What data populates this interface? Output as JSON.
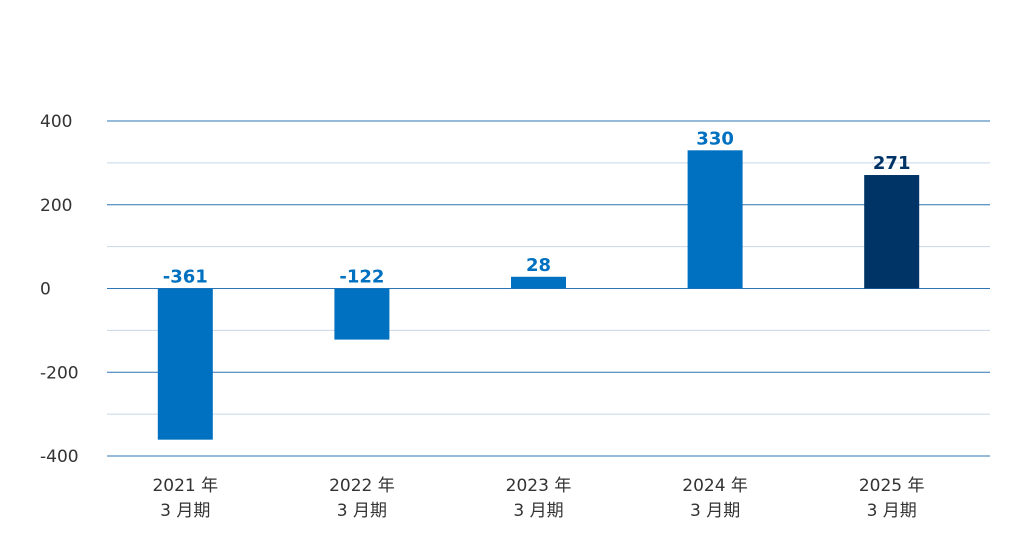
{
  "chart_data": {
    "type": "bar",
    "categories": [
      {
        "line1": "2021 年",
        "line2": "3 月期"
      },
      {
        "line1": "2022 年",
        "line2": "3 月期"
      },
      {
        "line1": "2023 年",
        "line2": "3 月期"
      },
      {
        "line1": "2024 年",
        "line2": "3 月期"
      },
      {
        "line1": "2025 年",
        "line2": "3 月期"
      }
    ],
    "values": [
      -361,
      -122,
      28,
      330,
      271
    ],
    "data_labels": [
      "-361",
      "-122",
      "28",
      "330",
      "271"
    ],
    "ylim": [
      -400,
      400
    ],
    "yticks": [
      "400",
      "200",
      "0",
      "-200",
      "-400"
    ],
    "ytick_values": [
      400,
      200,
      0,
      -200,
      -400
    ],
    "minor_gridlines": [
      300,
      100,
      -100,
      -300
    ],
    "grid": true,
    "colors": {
      "bar": "#0070c0",
      "bar_highlight": "#003366",
      "label": "#0070c0",
      "label_highlight": "#003366",
      "major_grid": "#2e75b6",
      "minor_grid": "#c8d6e5"
    },
    "highlight_index": 4
  }
}
